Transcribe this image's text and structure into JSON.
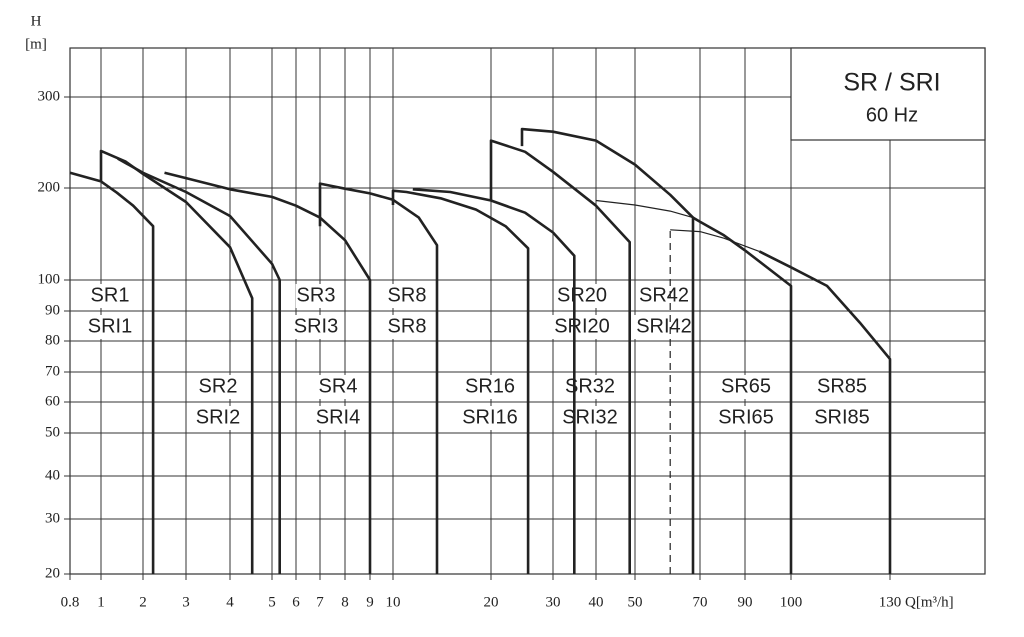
{
  "chart_data": {
    "type": "line",
    "y_label": "H",
    "y_unit": "[m]",
    "x_label": "Q[m³/h]",
    "box_title": "SR / SRI",
    "box_subtitle": "60 Hz",
    "x_scale": "log",
    "y_scale": "log",
    "grid": true,
    "xlim": [
      0.8,
      167
    ],
    "ylim": [
      20,
      354
    ],
    "xticks": [
      0.8,
      1,
      2,
      3,
      4,
      5,
      6,
      7,
      8,
      9,
      10,
      20,
      30,
      40,
      50,
      70,
      90,
      100,
      130
    ],
    "yticks": [
      20,
      30,
      40,
      50,
      60,
      70,
      80,
      90,
      100,
      200,
      300
    ],
    "series": [
      {
        "color": "#222",
        "width": "thick",
        "x": [
          0.8,
          1,
          1.3,
          1.7,
          2.2,
          2.2
        ],
        "values": [
          214,
          206,
          193,
          175,
          150,
          20
        ]
      },
      {
        "color": "#222",
        "width": "thick",
        "x": [
          1,
          1,
          1.5,
          2,
          3,
          4,
          4.5,
          4.5
        ],
        "values": [
          206,
          236,
          225,
          213,
          180,
          128,
          94,
          20
        ]
      },
      {
        "color": "#222",
        "width": "thick",
        "x": [
          1.32,
          2,
          3,
          4,
          5,
          5.3,
          5.3
        ],
        "values": [
          228,
          214,
          194,
          162,
          113,
          100,
          20
        ]
      },
      {
        "color": "#222",
        "width": "thick",
        "x": [
          2.45,
          3,
          4,
          5,
          6,
          7,
          8,
          9,
          9
        ],
        "values": [
          214,
          209,
          198,
          187,
          175,
          160,
          135,
          100,
          20
        ]
      },
      {
        "color": "#222",
        "width": "thick",
        "x": [
          7,
          7,
          8,
          9,
          10,
          12,
          13.65,
          13.65
        ],
        "values": [
          150,
          204,
          199,
          192,
          183,
          160,
          130,
          20
        ]
      },
      {
        "color": "#222",
        "width": "thick",
        "x": [
          10,
          10,
          11,
          14,
          18,
          22,
          25.5,
          25.5
        ],
        "values": [
          176,
          196,
          194,
          185,
          170,
          150,
          127,
          20
        ]
      },
      {
        "color": "#222",
        "width": "thick",
        "x": [
          11.5,
          15,
          20,
          25,
          30,
          34.6,
          34.6
        ],
        "values": [
          198,
          194,
          182,
          166,
          143,
          120,
          20
        ]
      },
      {
        "color": "#222",
        "width": "thick",
        "x": [
          20,
          20,
          25,
          30,
          40,
          48.5,
          48.5
        ],
        "values": [
          182,
          247,
          235,
          215,
          175,
          133,
          20
        ]
      },
      {
        "color": "#222",
        "width": "thick",
        "x": [
          24.5,
          24.5,
          30,
          40,
          50,
          60,
          67.5,
          67.5
        ],
        "values": [
          241,
          260,
          257,
          247,
          222,
          190,
          160,
          20
        ]
      },
      {
        "color": "#222",
        "width": "thin",
        "x": [
          40,
          50,
          60,
          67.5
        ],
        "values": [
          182,
          176,
          168,
          160
        ]
      },
      {
        "color": "#222",
        "width": "thick",
        "x": [
          67.5,
          70,
          80,
          90,
          100,
          100
        ],
        "values": [
          160,
          155,
          140,
          125,
          98,
          20
        ]
      },
      {
        "color": "#222",
        "width": "dashed",
        "x": [
          60,
          60
        ],
        "values": [
          20,
          146
        ]
      },
      {
        "color": "#222",
        "width": "thin",
        "x": [
          60,
          70,
          80,
          93
        ],
        "values": [
          146,
          144,
          137,
          124
        ]
      },
      {
        "color": "#222",
        "width": "thick",
        "x": [
          93,
          100,
          110,
          120,
          130,
          130
        ],
        "values": [
          124,
          110,
          98,
          86,
          74,
          20
        ]
      }
    ],
    "annotations": [
      [
        "SR1",
        "SRI1"
      ],
      [
        "SR2",
        "SRI2"
      ],
      [
        "SR3",
        "SRI3"
      ],
      [
        "SR4",
        "SRI4"
      ],
      [
        "SR8",
        "SR8"
      ],
      [
        "SR16",
        "SRI16"
      ],
      [
        "SR20",
        "SRI20"
      ],
      [
        "SR32",
        "SRI32"
      ],
      [
        "SR42",
        "SRI42"
      ],
      [
        "SR65",
        "SRI65"
      ],
      [
        "SR85",
        "SRI85"
      ]
    ]
  }
}
